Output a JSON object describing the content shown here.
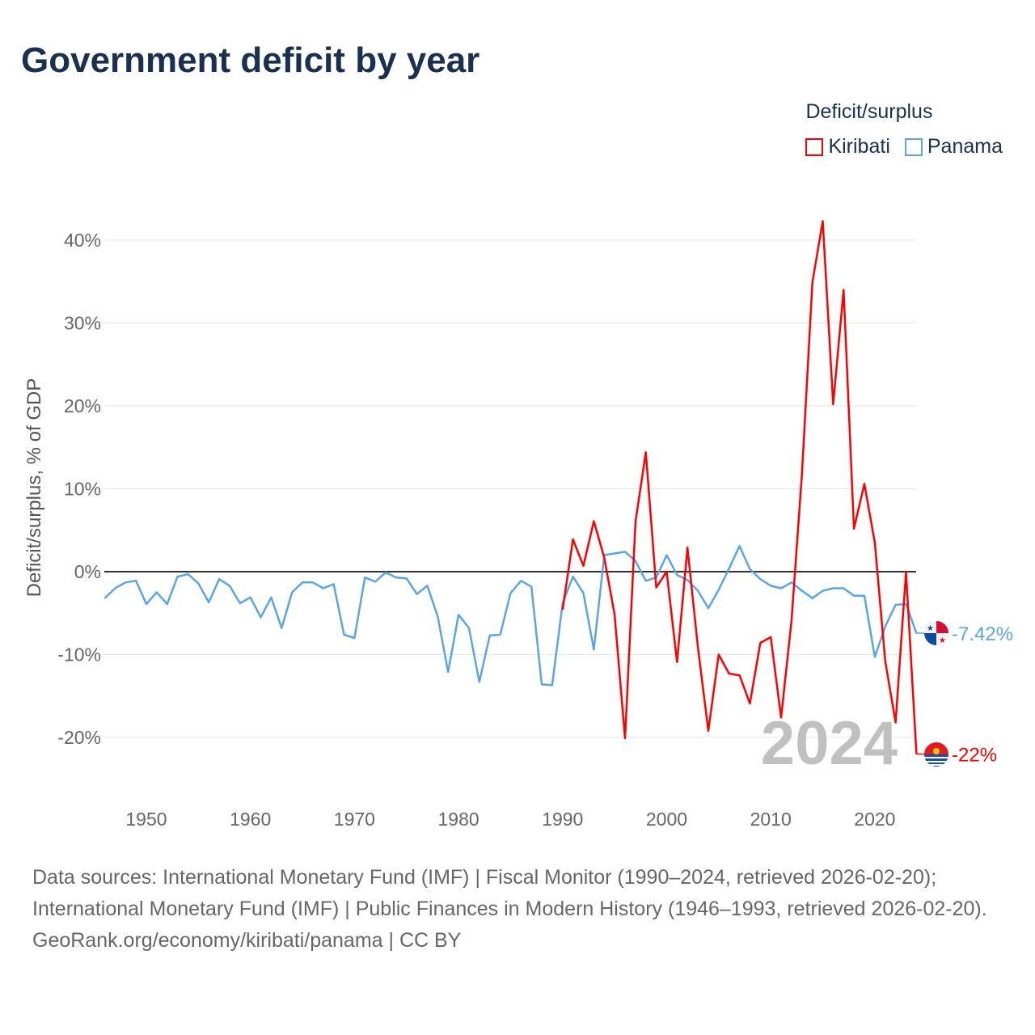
{
  "chart_data": {
    "type": "line",
    "title": "Government deficit by year",
    "ylabel": "Deficit/surplus, % of GDP",
    "xlabel": "",
    "legend_title": "Deficit/surplus",
    "legend_position": "top-right",
    "xlim": [
      1946,
      2024
    ],
    "ylim": [
      -25,
      45
    ],
    "yticks": [
      -20,
      -10,
      0,
      10,
      20,
      30,
      40
    ],
    "ytick_labels": [
      "-20%",
      "-10%",
      "0%",
      "10%",
      "20%",
      "30%",
      "40%"
    ],
    "xticks": [
      1950,
      1960,
      1970,
      1980,
      1990,
      2000,
      2010,
      2020
    ],
    "xtick_labels": [
      "1950",
      "1960",
      "1970",
      "1980",
      "1990",
      "2000",
      "2010",
      "2020"
    ],
    "year_watermark": "2024",
    "series": [
      {
        "name": "Kiribati",
        "color": "#ff0000",
        "end_label": "-22%",
        "start": 1990,
        "values": [
          -4.6,
          3.9,
          0.7,
          6.1,
          1.7,
          -5.2,
          -20.1,
          6.0,
          14.4,
          -1.9,
          0,
          -10.9,
          2.9,
          -9.1,
          -19.2,
          -10.0,
          -12.3,
          -12.5,
          -15.9,
          -8.6,
          -7.9,
          -17.6,
          -5.9,
          11.8,
          34.9,
          42.3,
          20.2,
          34.0,
          5.2,
          10.6,
          3.5,
          -10.8,
          -18.2,
          0,
          -22
        ]
      },
      {
        "name": "Panama",
        "color": "#5aa5e8",
        "end_label": "-7.42%",
        "start": 1946,
        "values": [
          -3.2,
          -2.0,
          -1.3,
          -1.1,
          -3.9,
          -2.5,
          -3.9,
          -0.6,
          -0.3,
          -1.4,
          -3.7,
          -0.9,
          -1.7,
          -3.8,
          -3.1,
          -5.5,
          -3.1,
          -6.8,
          -2.5,
          -1.3,
          -1.3,
          -2.0,
          -1.5,
          -7.6,
          -8.0,
          -0.7,
          -1.2,
          -0.1,
          -0.7,
          -0.8,
          -2.7,
          -1.7,
          -5.4,
          -12.1,
          -5.2,
          -6.8,
          -13.3,
          -7.7,
          -7.6,
          -2.6,
          -1.1,
          -1.8,
          -13.6,
          -13.7,
          -3.8,
          -0.6,
          -2.6,
          -9.4,
          2.0,
          2.2,
          2.4,
          1.3,
          -1.1,
          -0.7,
          2.0,
          -0.4,
          -1.0,
          -2.3,
          -4.4,
          -2.2,
          0.4,
          3.1,
          0.3,
          -0.9,
          -1.7,
          -2.0,
          -1.3,
          -2.3,
          -3.2,
          -2.3,
          -2.0,
          -2.0,
          -2.9,
          -2.9,
          -10.3,
          -6.6,
          -4.0,
          -3.9,
          -7.42
        ]
      }
    ]
  },
  "footer": {
    "sources": "Data sources: International Monetary Fund (IMF) | Fiscal Monitor (1990–2024, retrieved 2026-02-20); International Monetary Fund (IMF) | Public Finances in Modern History (1946–1993, retrieved 2026-02-20).",
    "credit": "GeoRank.org/economy/kiribati/panama | CC BY"
  }
}
